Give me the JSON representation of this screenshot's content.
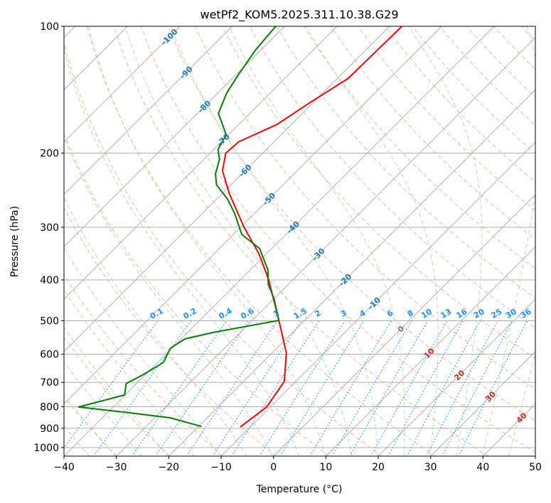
{
  "chart_data": {
    "type": "line",
    "subtype": "skew-t log-p",
    "title": "wetPf2_KOM5.2025.311.10.38.G29",
    "xlabel": "Temperature (°C)",
    "ylabel": "Pressure (hPa)",
    "xlim": [
      -40,
      50
    ],
    "ylim": [
      1050,
      100
    ],
    "xticks": [
      "−40",
      "−30",
      "−20",
      "−10",
      "0",
      "10",
      "20",
      "30",
      "40",
      "50"
    ],
    "xtick_values": [
      -40,
      -30,
      -20,
      -10,
      0,
      10,
      20,
      30,
      40,
      50
    ],
    "yticks": [
      "100",
      "200",
      "300",
      "400",
      "500",
      "600",
      "700",
      "800",
      "900",
      "1000"
    ],
    "ytick_values": [
      100,
      200,
      300,
      400,
      500,
      600,
      700,
      800,
      900,
      1000
    ],
    "grid": true,
    "series": [
      {
        "name": "temperature",
        "color": "#ff0000",
        "pressure": [
          893,
          801,
          697,
          597,
          499,
          398,
          347,
          299,
          249,
          220,
          200,
          188,
          171,
          152,
          133,
          100
        ],
        "temperature": [
          -11.9,
          -10.7,
          -12.2,
          -17.2,
          -24.9,
          -34.8,
          -41.4,
          -49.5,
          -58.7,
          -64.3,
          -67.0,
          -66.7,
          -62.7,
          -60.6,
          -57.9,
          -57.6
        ]
      },
      {
        "name": "dewpoint",
        "color": "#008000",
        "pressure": [
          891,
          850,
          826,
          801,
          750,
          705,
          673,
          628,
          581,
          552,
          533,
          499,
          442,
          410,
          379,
          337,
          312,
          278,
          257,
          238,
          224,
          207,
          196,
          181,
          161,
          144,
          130,
          114,
          100
        ],
        "temperature": [
          -19.4,
          -27.0,
          -36.1,
          -46.6,
          -40.1,
          -42.0,
          -40.5,
          -38.9,
          -40.3,
          -39.3,
          -35.1,
          -24.9,
          -30.1,
          -33.8,
          -36.6,
          -42.3,
          -48.4,
          -53.8,
          -57.9,
          -62.7,
          -65.0,
          -67.0,
          -69.2,
          -70.4,
          -76.0,
          -78.3,
          -79.6,
          -81.0,
          -81.7
        ]
      }
    ],
    "isotherm_labels": [
      {
        "value": -100,
        "text": "-100",
        "color": "#1f77b4"
      },
      {
        "value": -90,
        "text": "-90",
        "color": "#1f77b4"
      },
      {
        "value": -80,
        "text": "-80",
        "color": "#1f77b4"
      },
      {
        "value": -70,
        "text": "-70",
        "color": "#1f77b4"
      },
      {
        "value": -60,
        "text": "-60",
        "color": "#1f77b4"
      },
      {
        "value": -50,
        "text": "-50",
        "color": "#1f77b4"
      },
      {
        "value": -40,
        "text": "-40",
        "color": "#1f77b4"
      },
      {
        "value": -30,
        "text": "-30",
        "color": "#1f77b4"
      },
      {
        "value": -20,
        "text": "-20",
        "color": "#1f77b4"
      },
      {
        "value": -10,
        "text": "-10",
        "color": "#1f77b4"
      },
      {
        "value": 0,
        "text": "0",
        "color": "#777777"
      },
      {
        "value": 10,
        "text": "10",
        "color": "#d62728"
      },
      {
        "value": 20,
        "text": "20",
        "color": "#d62728"
      },
      {
        "value": 30,
        "text": "30",
        "color": "#d62728"
      },
      {
        "value": 40,
        "text": "40",
        "color": "#d62728"
      }
    ],
    "mixing_ratio_labels": [
      "0.1",
      "0.2",
      "0.4",
      "0.6",
      "1",
      "1.5",
      "2",
      "3",
      "4",
      "6",
      "8",
      "10",
      "13",
      "16",
      "20",
      "25",
      "30",
      "36"
    ],
    "colors": {
      "isotherm": "#aaaaaa",
      "dry_adiabat": "#f4a582",
      "moist_adiabat": "#a6d49a",
      "mixing_ratio": "#1e90ff",
      "mixing_label": "#1e90ff"
    }
  }
}
